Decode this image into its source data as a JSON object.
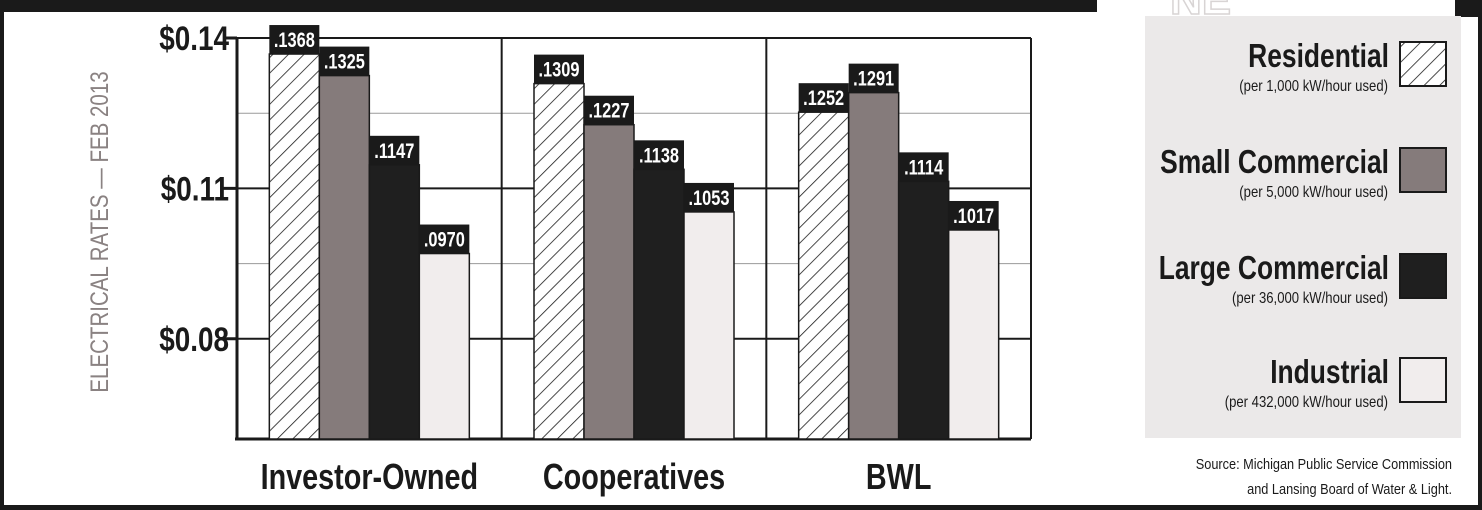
{
  "header_fragment": "NE",
  "chart_data": {
    "type": "bar",
    "title": "",
    "ylabel": "ELECTRICAL RATES — FEB 2013",
    "xlabel": "",
    "ylim": [
      0.06,
      0.14
    ],
    "yticks": [
      {
        "value": 0.14,
        "label": "$0.14"
      },
      {
        "value": 0.11,
        "label": "$0.11"
      },
      {
        "value": 0.08,
        "label": "$0.08"
      }
    ],
    "minor_gridlines": [
      0.125,
      0.095
    ],
    "categories": [
      "Investor-Owned",
      "Cooperatives",
      "BWL"
    ],
    "series": [
      {
        "name": "Residential",
        "note": "(per 1,000 kW/hour used)",
        "fill": "hatch",
        "color": "#ffffff",
        "values": [
          0.1368,
          0.1309,
          0.1252
        ],
        "labels": [
          ".1368",
          ".1309",
          ".1252"
        ]
      },
      {
        "name": "Small Commercial",
        "note": "(per 5,000 kW/hour used)",
        "fill": "solid",
        "color": "#857b7b",
        "values": [
          0.1325,
          0.1227,
          0.1291
        ],
        "labels": [
          ".1325",
          ".1227",
          ".1291"
        ]
      },
      {
        "name": "Large Commercial",
        "note": "(per 36,000 kW/hour used)",
        "fill": "solid",
        "color": "#1f1f1f",
        "values": [
          0.1147,
          0.1138,
          0.1114
        ],
        "labels": [
          ".1147",
          ".1138",
          ".1114"
        ]
      },
      {
        "name": "Industrial",
        "note": "(per 432,000 kW/hour used)",
        "fill": "solid",
        "color": "#f1eded",
        "values": [
          0.097,
          0.1053,
          0.1017
        ],
        "labels": [
          ".0970",
          ".1053",
          ".1017"
        ]
      }
    ],
    "grid": true,
    "legend_position": "right"
  },
  "source": {
    "line1": "Source: Michigan Public Service Commission",
    "line2": "and Lansing Board of Water & Light."
  },
  "colors": {
    "frame": "#1a1a1a",
    "label_box": "#1a1a1a",
    "ylabel": "#8a8282",
    "legend_bg": "#ebe9e9",
    "gridline": "#9a9a9a"
  }
}
